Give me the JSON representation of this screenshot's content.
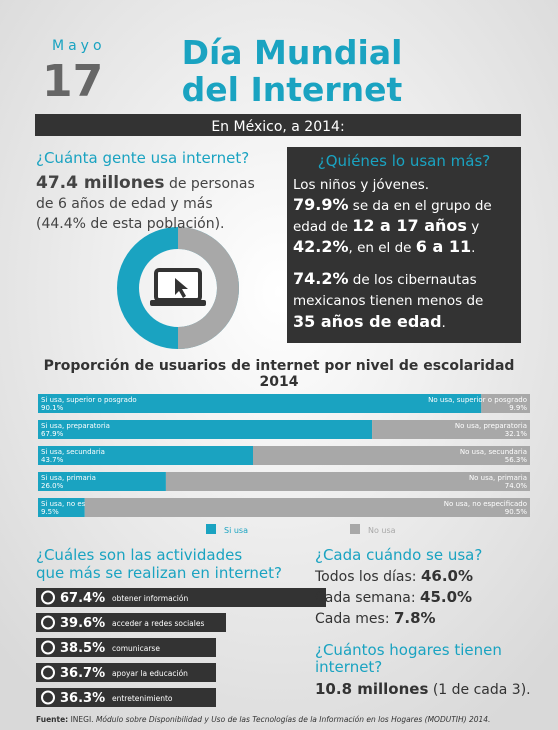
{
  "header": {
    "month": "Mayo",
    "day": "17",
    "title_lines": [
      "Día Mundial",
      "del Internet"
    ],
    "banner": "En México, a 2014:"
  },
  "users": {
    "heading": "¿Cuánta gente usa internet?",
    "lines": [
      [
        {
          "text": "47.4 millones",
          "bold": true
        },
        {
          "text": " de personas"
        }
      ],
      [
        {
          "text": "de 6 años de edad y más"
        }
      ],
      [
        {
          "text": "(44.4% de esta población)."
        }
      ]
    ]
  },
  "who": {
    "heading": "¿Quiénes lo usan más?",
    "lines": [
      [
        {
          "text": "Los niños y jóvenes."
        }
      ],
      [
        {
          "text": "79.9%",
          "bold": true
        },
        {
          "text": " se da en el grupo de"
        }
      ],
      [
        {
          "text": "edad de "
        },
        {
          "text": "12 a 17 años",
          "bold": true
        },
        {
          "text": " y"
        }
      ],
      [
        {
          "text": "42.2%",
          "bold": true
        },
        {
          "text": ", en el de "
        },
        {
          "text": "6 a 11",
          "bold": true
        },
        {
          "text": "."
        }
      ],
      [
        {
          "text": "74.2%",
          "bold": true
        },
        {
          "text": " de los cibernautas"
        }
      ],
      [
        {
          "text": "mexicanos tienen menos de"
        }
      ],
      [
        {
          "text": "35 años de edad",
          "bold": true
        },
        {
          "text": "."
        }
      ]
    ]
  },
  "chart_data": {
    "type": "bar",
    "orientation": "horizontal",
    "stacked": true,
    "title": "Proporción de usuarios de internet por nivel de escolaridad",
    "subtitle": "2014",
    "xlim": [
      0,
      100
    ],
    "series": [
      {
        "name": "Si usa",
        "color": "#1aa3c1",
        "values": [
          90.1,
          67.9,
          43.7,
          26.0,
          9.5
        ],
        "value_labels": [
          "90.1%",
          "67.9%",
          "43.7%",
          "26.0%",
          "9.5%"
        ],
        "segment_labels": [
          "Si usa, superior o posgrado",
          "Si usa, preparatoria",
          "Si usa, secundaria",
          "Si usa, primaria",
          "Si usa, no especificado"
        ]
      },
      {
        "name": "No usa",
        "color": "#a8a8a8",
        "values": [
          9.9,
          32.1,
          56.3,
          74.0,
          90.5
        ],
        "value_labels": [
          "9.9%",
          "32.1%",
          "56.3%",
          "74.0%",
          "90.5%"
        ],
        "segment_labels": [
          "No usa, superior o posgrado",
          "No usa, preparatoria",
          "No usa, secundaria",
          "No usa, primaria",
          "No usa, no especificado"
        ]
      }
    ]
  },
  "activities": {
    "heading_lines": [
      "¿Cuáles son las actividades",
      "que más se realizan en internet?"
    ],
    "items": [
      {
        "value": "67.4%",
        "label": "obtener información"
      },
      {
        "value": "39.6%",
        "label": "acceder a redes sociales"
      },
      {
        "value": "38.5%",
        "label": "comunicarse"
      },
      {
        "value": "36.7%",
        "label": "apoyar la educación"
      },
      {
        "value": "36.3%",
        "label": "entretenimiento"
      }
    ]
  },
  "frequency": {
    "heading": "¿Cada cuándo se usa?",
    "lines": [
      [
        {
          "text": "Todos los días: "
        },
        {
          "text": "46.0%",
          "bold": true
        }
      ],
      [
        {
          "text": "Cada semana: "
        },
        {
          "text": "45.0%",
          "bold": true
        }
      ],
      [
        {
          "text": "Cada mes: "
        },
        {
          "text": "7.8%",
          "bold": true
        }
      ]
    ]
  },
  "homes": {
    "heading_lines": [
      "¿Cuántos hogares tienen",
      "internet?"
    ],
    "line": [
      {
        "text": "10.8 millones",
        "bold": true
      },
      {
        "text": " (1 de cada 3)."
      }
    ]
  },
  "footer": [
    {
      "text": "Fuente:",
      "bold": true
    },
    {
      "text": " INEGI. "
    },
    {
      "text": "Módulo sobre Disponibilidad y Uso de las Tecnologías de la Información en los Hogares (MODUTIH) 2014.",
      "italic": true
    }
  ]
}
